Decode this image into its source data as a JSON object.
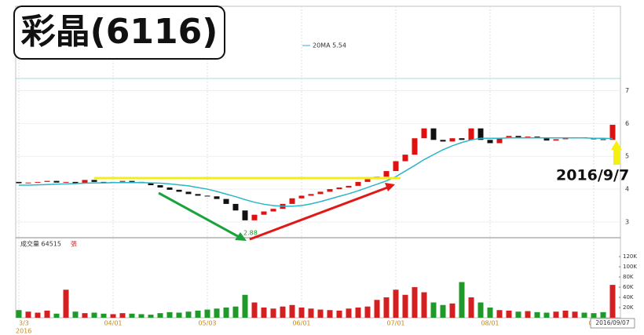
{
  "chart_data": {
    "type": "candlestick",
    "title": "彩晶(6116)",
    "annotation": "2016/9/7",
    "low_label": "2.88",
    "ma_legend": "20MA 5.54",
    "volume_label": "成交量 64515",
    "volume_unit": "張",
    "cursor_date": "2016/09/07",
    "year_label": "2016",
    "categories": [
      "3/3",
      null,
      null,
      null,
      null,
      null,
      null,
      null,
      null,
      null,
      "04/01",
      null,
      null,
      null,
      null,
      null,
      null,
      null,
      null,
      null,
      "05/03",
      null,
      null,
      null,
      null,
      null,
      null,
      null,
      null,
      null,
      "06/01",
      null,
      null,
      null,
      null,
      null,
      null,
      null,
      null,
      null,
      "07/01",
      null,
      null,
      null,
      null,
      null,
      null,
      null,
      null,
      null,
      "08/01",
      null,
      null,
      null,
      null,
      null,
      null,
      null,
      null,
      null,
      null,
      "09/",
      null,
      null
    ],
    "open": [
      4.22,
      4.18,
      4.2,
      4.22,
      4.25,
      4.2,
      4.22,
      4.18,
      4.28,
      4.22,
      4.2,
      4.22,
      4.25,
      4.22,
      4.18,
      4.12,
      4.05,
      3.98,
      3.92,
      3.85,
      3.8,
      3.78,
      3.7,
      3.55,
      3.35,
      3.05,
      3.22,
      3.32,
      3.4,
      3.55,
      3.72,
      3.8,
      3.85,
      3.92,
      4.0,
      4.05,
      4.1,
      4.22,
      4.3,
      4.38,
      4.55,
      4.85,
      5.05,
      5.55,
      5.85,
      5.5,
      5.45,
      5.55,
      5.5,
      5.85,
      5.5,
      5.4,
      5.55,
      5.62,
      5.58,
      5.6,
      5.55,
      5.48,
      5.52,
      5.55,
      5.58,
      5.55,
      5.52,
      5.5
    ],
    "close": [
      4.18,
      4.2,
      4.22,
      4.25,
      4.2,
      4.22,
      4.18,
      4.28,
      4.22,
      4.2,
      4.22,
      4.25,
      4.22,
      4.18,
      4.12,
      4.05,
      3.98,
      3.92,
      3.85,
      3.8,
      3.78,
      3.7,
      3.55,
      3.35,
      3.05,
      3.22,
      3.32,
      3.4,
      3.55,
      3.72,
      3.8,
      3.85,
      3.92,
      4.0,
      4.05,
      4.1,
      4.22,
      4.3,
      4.38,
      4.55,
      4.85,
      5.05,
      5.55,
      5.85,
      5.5,
      5.45,
      5.55,
      5.5,
      5.85,
      5.5,
      5.4,
      5.55,
      5.62,
      5.58,
      5.6,
      5.55,
      5.48,
      5.52,
      5.55,
      5.58,
      5.55,
      5.52,
      5.5,
      5.96
    ],
    "ma": {
      "name": "20MA",
      "color": "#2bb5c8",
      "values": [
        4.12,
        4.12,
        4.13,
        4.14,
        4.15,
        4.16,
        4.17,
        4.18,
        4.19,
        4.19,
        4.2,
        4.2,
        4.2,
        4.2,
        4.19,
        4.18,
        4.16,
        4.13,
        4.1,
        4.05,
        4.0,
        3.93,
        3.85,
        3.77,
        3.68,
        3.6,
        3.54,
        3.5,
        3.48,
        3.48,
        3.5,
        3.55,
        3.62,
        3.7,
        3.78,
        3.86,
        3.95,
        4.05,
        4.15,
        4.25,
        4.38,
        4.55,
        4.72,
        4.9,
        5.05,
        5.2,
        5.32,
        5.42,
        5.5,
        5.55,
        5.55,
        5.55,
        5.56,
        5.56,
        5.56,
        5.56,
        5.56,
        5.56,
        5.56,
        5.56,
        5.56,
        5.55,
        5.55,
        5.54
      ]
    },
    "volume": [
      15000,
      12000,
      10000,
      14000,
      8000,
      55000,
      12000,
      9000,
      10000,
      8000,
      7000,
      9000,
      8000,
      7000,
      6000,
      9000,
      11000,
      10000,
      12000,
      14000,
      16000,
      18000,
      20000,
      22000,
      45000,
      30000,
      20000,
      18000,
      22000,
      25000,
      20000,
      18000,
      16000,
      15000,
      14000,
      18000,
      20000,
      22000,
      35000,
      40000,
      55000,
      45000,
      60000,
      50000,
      30000,
      25000,
      28000,
      70000,
      40000,
      30000,
      20000,
      15000,
      14000,
      12000,
      13000,
      11000,
      10000,
      12000,
      14000,
      12000,
      10000,
      9000,
      11000,
      64515
    ],
    "up_color": "#e01010",
    "down_color": "#111111",
    "vol_up_color": "#d42020",
    "vol_down_color": "#1f9a2a",
    "ylim": [
      2.52,
      9.57
    ],
    "yticks": [
      3,
      4,
      5,
      6,
      7
    ],
    "y2lim": [
      0,
      154000
    ],
    "y2ticks": [
      {
        "value": 20000,
        "label": "20K"
      },
      {
        "value": 40000,
        "label": "40K"
      },
      {
        "value": 60000,
        "label": "60K"
      },
      {
        "value": 80000,
        "label": "80K"
      },
      {
        "value": 100000,
        "label": "100K"
      },
      {
        "value": 120000,
        "label": "120K"
      }
    ]
  }
}
